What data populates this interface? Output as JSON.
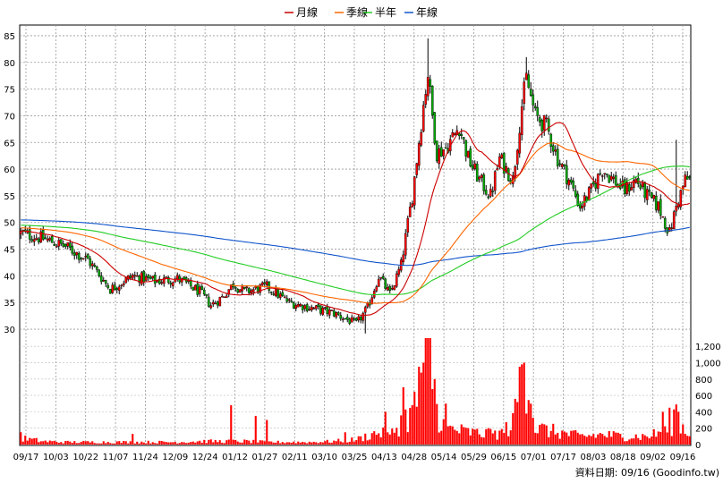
{
  "chart_data": {
    "type": "candlestick",
    "legend": [
      {
        "name": "月線",
        "color": "#cc0000"
      },
      {
        "name": "季線",
        "color": "#ff6600"
      },
      {
        "name": "半年",
        "color": "#22cc22"
      },
      {
        "name": "年線",
        "color": "#1155cc"
      }
    ],
    "price_ylim": [
      28,
      87
    ],
    "price_yticks": [
      "85",
      "80",
      "75",
      "70",
      "65",
      "60",
      "55",
      "50",
      "45",
      "40",
      "35",
      "30"
    ],
    "volume_ylim": [
      0,
      1300
    ],
    "volume_yticks": [
      "1,200",
      "1,000",
      "800",
      "600",
      "400",
      "200",
      "0"
    ],
    "x_labels": [
      "09/17",
      "10/03",
      "10/22",
      "11/07",
      "11/24",
      "12/09",
      "12/24",
      "01/12",
      "01/27",
      "02/11",
      "03/10",
      "03/25",
      "04/13",
      "04/28",
      "05/14",
      "05/29",
      "06/15",
      "07/01",
      "07/17",
      "08/03",
      "08/18",
      "09/02",
      "09/16"
    ],
    "grid": true,
    "legend_position": "top-center",
    "close_anchors": [
      [
        0,
        48
      ],
      [
        10,
        47
      ],
      [
        20,
        45.5
      ],
      [
        30,
        43
      ],
      [
        40,
        37.5
      ],
      [
        50,
        40
      ],
      [
        60,
        39
      ],
      [
        70,
        39.5
      ],
      [
        80,
        37
      ],
      [
        85,
        34.5
      ],
      [
        90,
        36
      ],
      [
        95,
        38.5
      ],
      [
        100,
        37
      ],
      [
        110,
        38
      ],
      [
        120,
        35
      ],
      [
        130,
        34
      ],
      [
        140,
        33
      ],
      [
        150,
        31
      ],
      [
        155,
        34
      ],
      [
        160,
        40
      ],
      [
        165,
        36.5
      ],
      [
        170,
        42
      ],
      [
        175,
        55
      ],
      [
        180,
        72
      ],
      [
        182,
        78
      ],
      [
        184,
        70
      ],
      [
        186,
        63
      ],
      [
        190,
        64
      ],
      [
        196,
        68
      ],
      [
        200,
        62
      ],
      [
        205,
        58
      ],
      [
        210,
        55
      ],
      [
        214,
        62
      ],
      [
        220,
        58
      ],
      [
        224,
        72
      ],
      [
        226,
        77
      ],
      [
        230,
        70
      ],
      [
        235,
        68
      ],
      [
        240,
        62
      ],
      [
        245,
        58
      ],
      [
        250,
        53
      ],
      [
        255,
        56
      ],
      [
        260,
        60
      ],
      [
        265,
        58
      ],
      [
        270,
        56
      ],
      [
        275,
        58
      ],
      [
        280,
        55
      ],
      [
        285,
        53
      ],
      [
        290,
        48
      ],
      [
        293,
        53
      ],
      [
        297,
        58
      ]
    ],
    "volume_anchors": [
      [
        0,
        80
      ],
      [
        10,
        40
      ],
      [
        20,
        30
      ],
      [
        30,
        30
      ],
      [
        40,
        30
      ],
      [
        50,
        30
      ],
      [
        60,
        30
      ],
      [
        70,
        30
      ],
      [
        80,
        40
      ],
      [
        90,
        40
      ],
      [
        100,
        40
      ],
      [
        110,
        30
      ],
      [
        120,
        30
      ],
      [
        130,
        30
      ],
      [
        140,
        40
      ],
      [
        150,
        60
      ],
      [
        160,
        150
      ],
      [
        165,
        100
      ],
      [
        170,
        280
      ],
      [
        175,
        380
      ],
      [
        178,
        600
      ],
      [
        180,
        1000
      ],
      [
        182,
        1300
      ],
      [
        184,
        800
      ],
      [
        186,
        400
      ],
      [
        190,
        200
      ],
      [
        200,
        150
      ],
      [
        210,
        120
      ],
      [
        215,
        150
      ],
      [
        220,
        250
      ],
      [
        224,
        1000
      ],
      [
        226,
        900
      ],
      [
        228,
        500
      ],
      [
        230,
        200
      ],
      [
        240,
        150
      ],
      [
        250,
        100
      ],
      [
        260,
        120
      ],
      [
        270,
        100
      ],
      [
        280,
        100
      ],
      [
        290,
        180
      ],
      [
        293,
        400
      ],
      [
        297,
        150
      ]
    ],
    "volume_spikes": [
      [
        0,
        150
      ],
      [
        50,
        130
      ],
      [
        94,
        480
      ],
      [
        105,
        350
      ],
      [
        110,
        300
      ],
      [
        145,
        150
      ],
      [
        163,
        400
      ],
      [
        171,
        700
      ],
      [
        175,
        480
      ],
      [
        178,
        950
      ],
      [
        180,
        1000
      ],
      [
        182,
        1300
      ],
      [
        185,
        800
      ],
      [
        190,
        500
      ],
      [
        209,
        200
      ],
      [
        215,
        190
      ],
      [
        223,
        950
      ],
      [
        225,
        1000
      ],
      [
        228,
        500
      ],
      [
        287,
        400
      ],
      [
        290,
        450
      ],
      [
        293,
        490
      ]
    ],
    "total_days": 300,
    "ma_periods": {
      "monthly": 20,
      "quarterly": 60,
      "half_year": 120,
      "annual": 240
    },
    "ma_annual_start": 50.5,
    "ma_half_start": 49.5,
    "ma_quarter_start": 49.0
  },
  "footer": "資料日期: 09/16  (Goodinfo.tw)"
}
